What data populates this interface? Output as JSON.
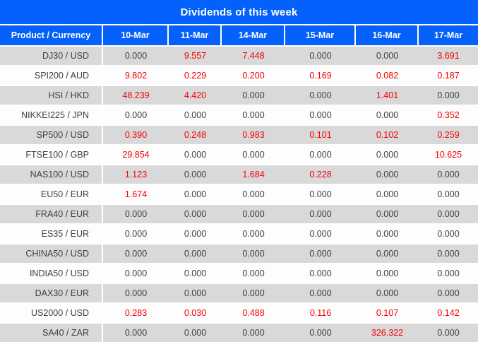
{
  "title": "Dividends of this week",
  "columns": [
    "Product / Currency",
    "10-Mar",
    "11-Mar",
    "14-Mar",
    "15-Mar",
    "16-Mar",
    "17-Mar"
  ],
  "zero_value": "0.000",
  "rows": [
    {
      "product": "DJ30 / USD",
      "values": [
        "0.000",
        "9.557",
        "7.448",
        "0.000",
        "0.000",
        "3.691"
      ]
    },
    {
      "product": "SPI200 / AUD",
      "values": [
        "9.802",
        "0.229",
        "0.200",
        "0.169",
        "0.082",
        "0.187"
      ]
    },
    {
      "product": "HSI / HKD",
      "values": [
        "48.239",
        "4.420",
        "0.000",
        "0.000",
        "1.401",
        "0.000"
      ]
    },
    {
      "product": "NIKKEI225 / JPN",
      "values": [
        "0.000",
        "0.000",
        "0.000",
        "0.000",
        "0.000",
        "0.352"
      ]
    },
    {
      "product": "SP500 / USD",
      "values": [
        "0.390",
        "0.248",
        "0.983",
        "0.101",
        "0.102",
        "0.259"
      ]
    },
    {
      "product": "FTSE100 / GBP",
      "values": [
        "29.854",
        "0.000",
        "0.000",
        "0.000",
        "0.000",
        "10.625"
      ]
    },
    {
      "product": "NAS100 / USD",
      "values": [
        "1.123",
        "0.000",
        "1.684",
        "0.228",
        "0.000",
        "0.000"
      ]
    },
    {
      "product": "EU50 / EUR",
      "values": [
        "1.674",
        "0.000",
        "0.000",
        "0.000",
        "0.000",
        "0.000"
      ]
    },
    {
      "product": "FRA40 / EUR",
      "values": [
        "0.000",
        "0.000",
        "0.000",
        "0.000",
        "0.000",
        "0.000"
      ]
    },
    {
      "product": "ES35 / EUR",
      "values": [
        "0.000",
        "0.000",
        "0.000",
        "0.000",
        "0.000",
        "0.000"
      ]
    },
    {
      "product": "CHINA50 / USD",
      "values": [
        "0.000",
        "0.000",
        "0.000",
        "0.000",
        "0.000",
        "0.000"
      ]
    },
    {
      "product": "INDIA50 / USD",
      "values": [
        "0.000",
        "0.000",
        "0.000",
        "0.000",
        "0.000",
        "0.000"
      ]
    },
    {
      "product": "DAX30 / EUR",
      "values": [
        "0.000",
        "0.000",
        "0.000",
        "0.000",
        "0.000",
        "0.000"
      ]
    },
    {
      "product": "US2000 / USD",
      "values": [
        "0.283",
        "0.030",
        "0.488",
        "0.116",
        "0.107",
        "0.142"
      ]
    },
    {
      "product": "SA40 / ZAR",
      "values": [
        "0.000",
        "0.000",
        "0.000",
        "0.000",
        "326.322",
        "0.000"
      ]
    }
  ],
  "colors": {
    "header_blue": "#0561FC",
    "header_text": "#FFFFFF",
    "row_gray": "#D9D9D9",
    "row_white": "#FDFDFD",
    "value_dark": "#404040",
    "value_red": "#F80000"
  }
}
